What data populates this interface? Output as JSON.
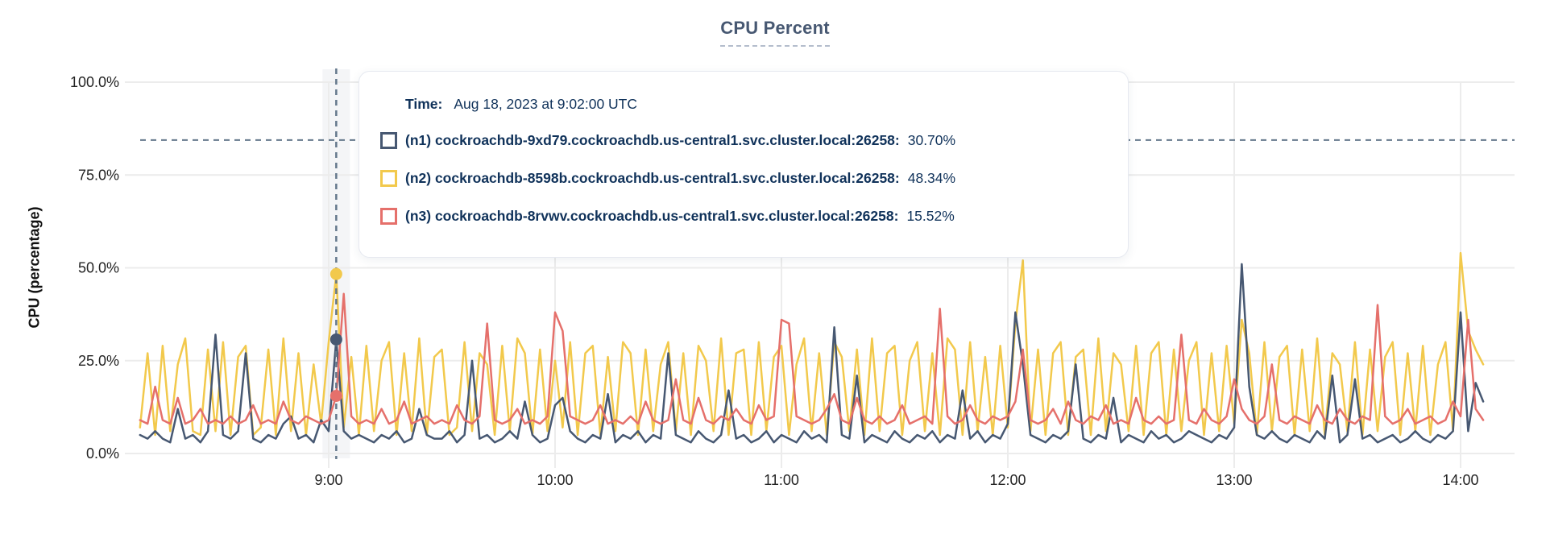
{
  "title": "CPU Percent",
  "y_axis_label": "CPU (percentage)",
  "tooltip": {
    "time_label": "Time:",
    "time_value": "Aug 18, 2023 at 9:02:00 UTC",
    "rows": [
      {
        "label": "(n1) cockroachdb-9xd79.cockroachdb.us-central1.svc.cluster.local:26258:",
        "value": "30.70%",
        "color": "#475872"
      },
      {
        "label": "(n2) cockroachdb-8598b.cockroachdb.us-central1.svc.cluster.local:26258:",
        "value": "48.34%",
        "color": "#f2c94c"
      },
      {
        "label": "(n3) cockroachdb-8rvwv.cockroachdb.us-central1.svc.cluster.local:26258:",
        "value": "15.52%",
        "color": "#e5706b"
      }
    ]
  },
  "colors": {
    "title": "#475872",
    "grid": "#ececec",
    "crosshair": "#64788c",
    "tick_text": "#242424",
    "hover_band": "rgba(71,88,114,0.06)"
  },
  "chart_data": {
    "type": "line",
    "title": "CPU Percent",
    "xlabel": "",
    "ylabel": "CPU (percentage)",
    "ylim": [
      0,
      100
    ],
    "grid": true,
    "legend_position": "tooltip-overlay",
    "x_unit": "minutes-after-midnight",
    "t_start": 490,
    "t_step": 2,
    "y_ticks": [
      {
        "label": "100.0%",
        "pct": 100
      },
      {
        "label": "75.0%",
        "pct": 75
      },
      {
        "label": "50.0%",
        "pct": 50
      },
      {
        "label": "25.0%",
        "pct": 25
      },
      {
        "label": "0.0%",
        "pct": 0
      }
    ],
    "x_ticks": [
      {
        "label": "9:00",
        "t": 540
      },
      {
        "label": "10:00",
        "t": 600
      },
      {
        "label": "11:00",
        "t": 660
      },
      {
        "label": "12:00",
        "t": 720
      },
      {
        "label": "13:00",
        "t": 780
      },
      {
        "label": "14:00",
        "t": 840
      }
    ],
    "hover": {
      "t": 542,
      "time_text": "Aug 18, 2023 at 9:02:00 UTC",
      "ruler_pct": 84.4,
      "band_width": 34,
      "points": [
        30.7,
        48.34,
        15.52
      ]
    },
    "series": [
      {
        "name": "(n1) cockroachdb-9xd79.cockroachdb.us-central1.svc.cluster.local:26258",
        "color": "#475872",
        "values": [
          5,
          4,
          6,
          4,
          3,
          12,
          4,
          5,
          3,
          6,
          32,
          5,
          4,
          6,
          27,
          4,
          3,
          5,
          4,
          8,
          10,
          4,
          5,
          3,
          9,
          6,
          30.7,
          6,
          4,
          5,
          4,
          3,
          5,
          4,
          6,
          3,
          4,
          12,
          5,
          4,
          4,
          6,
          3,
          5,
          25,
          4,
          5,
          3,
          4,
          6,
          4,
          14,
          5,
          3,
          4,
          13,
          15,
          6,
          4,
          3,
          5,
          4,
          16,
          3,
          5,
          4,
          6,
          3,
          5,
          4,
          27,
          5,
          4,
          3,
          6,
          4,
          3,
          5,
          17,
          4,
          5,
          3,
          4,
          6,
          3,
          5,
          4,
          3,
          6,
          4,
          5,
          3,
          34,
          5,
          4,
          21,
          3,
          5,
          4,
          3,
          6,
          4,
          3,
          5,
          4,
          6,
          3,
          5,
          4,
          17,
          4,
          6,
          3,
          5,
          4,
          8,
          38,
          24,
          5,
          4,
          3,
          5,
          4,
          6,
          24,
          4,
          3,
          5,
          4,
          15,
          3,
          5,
          4,
          3,
          6,
          4,
          5,
          3,
          4,
          6,
          5,
          4,
          3,
          5,
          4,
          7,
          51,
          18,
          5,
          4,
          6,
          4,
          3,
          5,
          4,
          3,
          6,
          4,
          21,
          3,
          5,
          20,
          4,
          5,
          3,
          4,
          5,
          3,
          4,
          6,
          4,
          3,
          5,
          4,
          6,
          38,
          6,
          19,
          14
        ]
      },
      {
        "name": "(n2) cockroachdb-8598b.cockroachdb.us-central1.svc.cluster.local:26258",
        "color": "#f2c94c",
        "values": [
          7,
          27,
          5,
          29,
          6,
          24,
          31,
          6,
          5,
          28,
          6,
          30,
          5,
          26,
          29,
          5,
          7,
          28,
          5,
          31,
          6,
          27,
          5,
          24,
          8,
          30,
          48.3,
          7,
          26,
          5,
          29,
          6,
          25,
          30,
          5,
          27,
          6,
          31,
          5,
          26,
          28,
          5,
          7,
          30,
          6,
          27,
          24,
          5,
          29,
          6,
          31,
          27,
          5,
          28,
          6,
          25,
          7,
          30,
          5,
          27,
          29,
          5,
          26,
          6,
          30,
          27,
          5,
          28,
          6,
          24,
          30,
          6,
          27,
          5,
          29,
          25,
          6,
          31,
          5,
          27,
          28,
          5,
          30,
          6,
          26,
          29,
          5,
          24,
          31,
          6,
          27,
          5,
          30,
          26,
          6,
          28,
          5,
          31,
          6,
          27,
          29,
          5,
          25,
          30,
          6,
          27,
          5,
          31,
          28,
          5,
          30,
          6,
          26,
          5,
          29,
          7,
          35,
          52,
          6,
          28,
          5,
          27,
          30,
          5,
          26,
          28,
          5,
          31,
          6,
          27,
          24,
          6,
          29,
          5,
          27,
          30,
          5,
          28,
          6,
          25,
          30,
          5,
          27,
          6,
          29,
          8,
          36,
          27,
          5,
          30,
          6,
          26,
          29,
          5,
          28,
          6,
          31,
          5,
          27,
          24,
          6,
          30,
          5,
          28,
          6,
          26,
          30,
          5,
          27,
          6,
          29,
          5,
          24,
          30,
          6,
          54,
          33,
          28,
          24
        ]
      },
      {
        "name": "(n3) cockroachdb-8rvwv.cockroachdb.us-central1.svc.cluster.local:26258",
        "color": "#e5706b",
        "values": [
          9,
          8,
          18,
          9,
          8,
          15,
          8,
          9,
          12,
          8,
          9,
          8,
          10,
          8,
          9,
          13,
          8,
          9,
          8,
          14,
          9,
          8,
          10,
          9,
          8,
          9,
          15.5,
          43,
          10,
          8,
          9,
          8,
          12,
          8,
          9,
          14,
          8,
          9,
          10,
          8,
          9,
          8,
          13,
          9,
          8,
          10,
          35,
          9,
          8,
          9,
          12,
          8,
          9,
          8,
          10,
          38,
          33,
          10,
          9,
          8,
          9,
          13,
          8,
          9,
          8,
          10,
          8,
          14,
          9,
          8,
          9,
          20,
          9,
          8,
          15,
          9,
          8,
          10,
          9,
          12,
          9,
          8,
          13,
          9,
          10,
          36,
          35,
          10,
          9,
          8,
          9,
          12,
          16,
          9,
          8,
          15,
          9,
          8,
          10,
          8,
          9,
          13,
          8,
          9,
          10,
          8,
          39,
          10,
          8,
          9,
          13,
          9,
          8,
          10,
          9,
          10,
          14,
          28,
          9,
          8,
          9,
          12,
          8,
          14,
          9,
          8,
          10,
          9,
          13,
          8,
          9,
          8,
          15,
          9,
          8,
          10,
          8,
          9,
          32,
          9,
          8,
          12,
          9,
          8,
          10,
          20,
          12,
          9,
          8,
          10,
          24,
          9,
          8,
          10,
          9,
          8,
          13,
          9,
          8,
          12,
          9,
          8,
          10,
          9,
          40,
          10,
          8,
          9,
          12,
          8,
          9,
          10,
          8,
          9,
          14,
          10,
          36,
          12,
          9
        ]
      }
    ]
  }
}
